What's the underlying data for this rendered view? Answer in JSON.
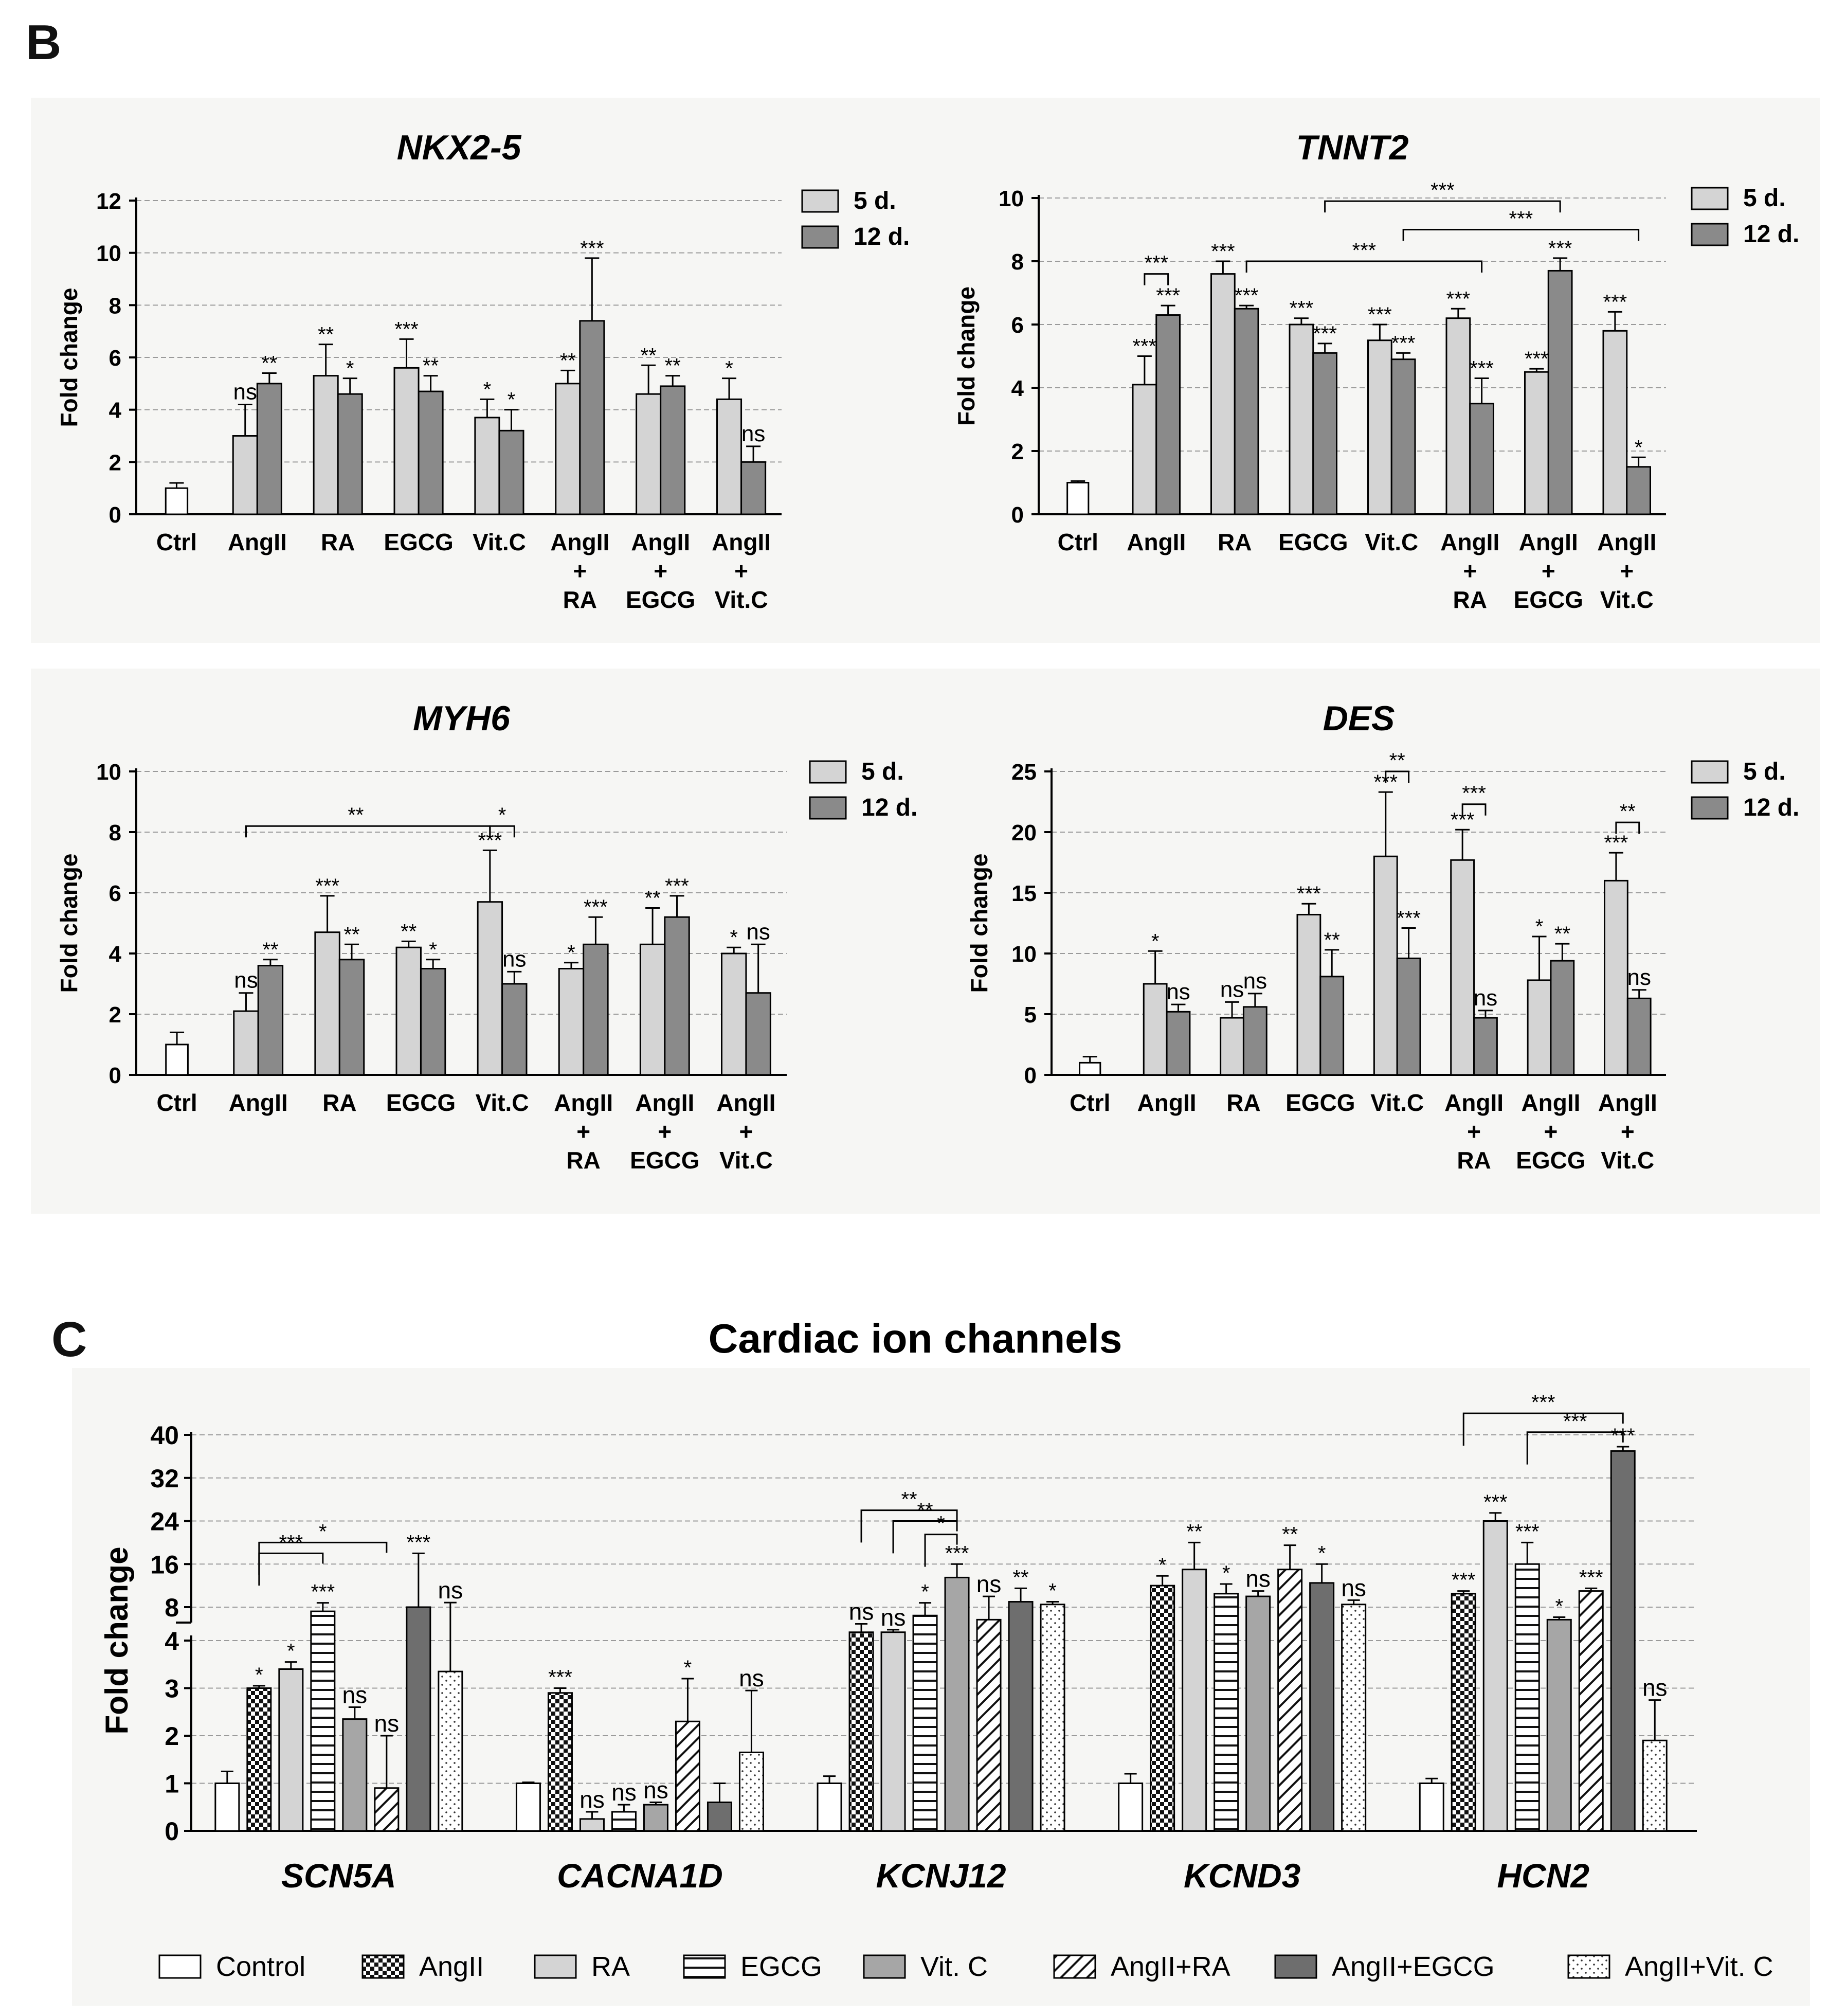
{
  "figure": {
    "panel_b_label": "B",
    "panel_c_label": "C",
    "legend_5d": "5 d.",
    "legend_12d": "12 d.",
    "ylabel": "Fold change",
    "colors": {
      "bar_5d": "#d4d4d4",
      "bar_12d": "#8a8a8a",
      "ctrl": "#ffffff",
      "axis": "#000000",
      "grid": "#9a9a9a"
    }
  },
  "chart_data": [
    {
      "id": "nkx25",
      "type": "bar",
      "title": "NKX2-5",
      "ylabel": "Fold change",
      "ylim": [
        0,
        12
      ],
      "yticks": [
        "0",
        "2",
        "4",
        "6",
        "8",
        "10",
        "12"
      ],
      "categories": [
        "Ctrl",
        "AngII",
        "RA",
        "EGCG",
        "Vit.C",
        "AngII\n+\nRA",
        "AngII\n+\nEGCG",
        "AngII\n+\nVit.C"
      ],
      "ctrl": {
        "value": 1.0,
        "err": 0.2
      },
      "series": [
        {
          "name": "5 d.",
          "values": [
            null,
            3.0,
            5.3,
            5.6,
            3.7,
            5.0,
            4.6,
            4.4
          ],
          "err": [
            null,
            1.2,
            1.2,
            1.1,
            0.7,
            0.5,
            1.1,
            0.8
          ],
          "sig": [
            null,
            "ns",
            "**",
            "***",
            "*",
            "**",
            "**",
            "*"
          ]
        },
        {
          "name": "12 d.",
          "values": [
            null,
            5.0,
            4.6,
            4.7,
            3.2,
            7.4,
            4.9,
            2.0
          ],
          "err": [
            null,
            0.4,
            0.6,
            0.6,
            0.8,
            2.4,
            0.4,
            0.6
          ],
          "sig": [
            null,
            "**",
            "*",
            "**",
            "*",
            "***",
            "**",
            "ns"
          ]
        }
      ],
      "brackets": []
    },
    {
      "id": "tnnt2",
      "type": "bar",
      "title": "TNNT2",
      "ylabel": "Fold change",
      "ylim": [
        0,
        10
      ],
      "yticks": [
        "0",
        "2",
        "4",
        "6",
        "8",
        "10"
      ],
      "categories": [
        "Ctrl",
        "AngII",
        "RA",
        "EGCG",
        "Vit.C",
        "AngII\n+\nRA",
        "AngII\n+\nEGCG",
        "AngII\n+\nVit.C"
      ],
      "ctrl": {
        "value": 1.0,
        "err": 0.05
      },
      "series": [
        {
          "name": "5 d.",
          "values": [
            null,
            4.1,
            7.6,
            6.0,
            5.5,
            6.2,
            4.5,
            5.8
          ],
          "err": [
            null,
            0.9,
            0.4,
            0.2,
            0.5,
            0.3,
            0.1,
            0.6
          ],
          "sig": [
            null,
            "***",
            "***",
            "***",
            "***",
            "***",
            "***",
            "***"
          ]
        },
        {
          "name": "12 d.",
          "values": [
            null,
            6.3,
            6.5,
            5.1,
            4.9,
            3.5,
            7.7,
            1.5
          ],
          "err": [
            null,
            0.3,
            0.1,
            0.3,
            0.2,
            0.8,
            0.4,
            0.3
          ],
          "sig": [
            null,
            "***",
            "***",
            "***",
            "***",
            "***",
            "***",
            "*"
          ]
        }
      ],
      "brackets": [
        {
          "from": [
            1,
            0
          ],
          "to": [
            1,
            1
          ],
          "label": "***",
          "y": 7.6
        },
        {
          "from": [
            3,
            1
          ],
          "to": [
            6,
            1
          ],
          "label": "***",
          "y": 9.9
        },
        {
          "from": [
            4,
            1
          ],
          "to": [
            7,
            1
          ],
          "label": "***",
          "y": 9.0
        },
        {
          "from": [
            2,
            1
          ],
          "to": [
            5,
            1
          ],
          "label": "***",
          "y": 8.0
        }
      ]
    },
    {
      "id": "myh6",
      "type": "bar",
      "title": "MYH6",
      "ylabel": "Fold change",
      "ylim": [
        0,
        10
      ],
      "yticks": [
        "0",
        "2",
        "4",
        "6",
        "8",
        "10"
      ],
      "categories": [
        "Ctrl",
        "AngII",
        "RA",
        "EGCG",
        "Vit.C",
        "AngII\n+\nRA",
        "AngII\n+\nEGCG",
        "AngII\n+\nVit.C"
      ],
      "ctrl": {
        "value": 1.0,
        "err": 0.4
      },
      "series": [
        {
          "name": "5 d.",
          "values": [
            null,
            2.1,
            4.7,
            4.2,
            5.7,
            3.5,
            4.3,
            4.0
          ],
          "err": [
            null,
            0.6,
            1.2,
            0.2,
            1.7,
            0.2,
            1.2,
            0.2
          ],
          "sig": [
            null,
            "ns",
            "***",
            "**",
            "***",
            "*",
            "**",
            "*"
          ]
        },
        {
          "name": "12 d.",
          "values": [
            null,
            3.6,
            3.8,
            3.5,
            3.0,
            4.3,
            5.2,
            2.7
          ],
          "err": [
            null,
            0.2,
            0.5,
            0.3,
            0.4,
            0.9,
            0.7,
            1.6
          ],
          "sig": [
            null,
            "**",
            "**",
            "*",
            "ns",
            "***",
            "***",
            "ns"
          ]
        }
      ],
      "brackets": [
        {
          "from": [
            1,
            0
          ],
          "to": [
            4,
            0
          ],
          "label": "**",
          "y": 8.2,
          "label_at": 0.45
        },
        {
          "from": [
            4,
            0
          ],
          "to": [
            4,
            1
          ],
          "label": "*",
          "y": 8.2
        }
      ]
    },
    {
      "id": "des",
      "type": "bar",
      "title": "DES",
      "ylabel": "Fold change",
      "ylim": [
        0,
        25
      ],
      "yticks": [
        "0",
        "5",
        "10",
        "15",
        "20",
        "25"
      ],
      "categories": [
        "Ctrl",
        "AngII",
        "RA",
        "EGCG",
        "Vit.C",
        "AngII\n+\nRA",
        "AngII\n+\nEGCG",
        "AngII\n+\nVit.C"
      ],
      "ctrl": {
        "value": 1.0,
        "err": 0.5
      },
      "series": [
        {
          "name": "5 d.",
          "values": [
            null,
            7.5,
            4.7,
            13.2,
            18.0,
            17.7,
            7.8,
            16.0
          ],
          "err": [
            null,
            2.7,
            1.3,
            0.9,
            5.3,
            2.5,
            3.6,
            2.3
          ],
          "sig": [
            null,
            "*",
            "ns",
            "***",
            "***",
            "***",
            "*",
            "***"
          ]
        },
        {
          "name": "12 d.",
          "values": [
            null,
            5.2,
            5.6,
            8.1,
            9.6,
            4.7,
            9.4,
            6.3
          ],
          "err": [
            null,
            0.6,
            1.1,
            2.2,
            2.5,
            0.6,
            1.4,
            0.7
          ],
          "sig": [
            null,
            "ns",
            "ns",
            "**",
            "***",
            "ns",
            "**",
            "ns"
          ]
        }
      ],
      "brackets": [
        {
          "from": [
            4,
            0
          ],
          "to": [
            4,
            1
          ],
          "label": "**",
          "y": 25.0
        },
        {
          "from": [
            5,
            0
          ],
          "to": [
            5,
            1
          ],
          "label": "***",
          "y": 22.3
        },
        {
          "from": [
            7,
            0
          ],
          "to": [
            7,
            1
          ],
          "label": "**",
          "y": 20.8
        }
      ]
    },
    {
      "id": "ion",
      "type": "bar",
      "title": "Cardiac ion channels",
      "ylabel": "Fold change",
      "axis_break": {
        "lower": [
          0,
          4
        ],
        "upper": [
          8,
          40
        ]
      },
      "yticks_lower": [
        "0",
        "1",
        "2",
        "3",
        "4"
      ],
      "yticks_upper": [
        "8",
        "16",
        "24",
        "32",
        "40"
      ],
      "categories": [
        "SCN5A",
        "CACNA1D",
        "KCNJ12",
        "KCND3",
        "HCN2"
      ],
      "series": [
        {
          "name": "Control",
          "pattern": "open",
          "values": [
            1.0,
            1.0,
            1.0,
            1.0,
            1.0
          ],
          "err": [
            0.25,
            0.02,
            0.15,
            0.2,
            0.1
          ],
          "sig": [
            "",
            "",
            "",
            "",
            ""
          ]
        },
        {
          "name": "AngII",
          "pattern": "checker",
          "values": [
            3.0,
            2.9,
            5.0,
            12.0,
            10.5
          ],
          "err": [
            0.05,
            0.1,
            1.0,
            1.8,
            0.5
          ],
          "sig": [
            "*",
            "***",
            "ns",
            "*",
            "***"
          ]
        },
        {
          "name": "RA",
          "pattern": "light",
          "values": [
            3.4,
            0.25,
            5.0,
            15.0,
            24.0
          ],
          "err": [
            0.15,
            0.15,
            0.3,
            5.0,
            1.5
          ],
          "sig": [
            "*",
            "ns",
            "ns",
            "**",
            "***"
          ]
        },
        {
          "name": "EGCG",
          "pattern": "hlines",
          "values": [
            7.5,
            0.4,
            7.0,
            10.5,
            16.0
          ],
          "err": [
            1.3,
            0.15,
            1.8,
            1.8,
            4.0
          ],
          "sig": [
            "***",
            "ns",
            "*",
            "*",
            "***"
          ]
        },
        {
          "name": "Vit. C",
          "pattern": "gray",
          "values": [
            2.35,
            0.55,
            13.5,
            10.0,
            6.5
          ],
          "err": [
            0.25,
            0.05,
            2.5,
            1.0,
            0.3
          ],
          "sig": [
            "ns",
            "ns",
            "***",
            "ns",
            "*"
          ]
        },
        {
          "name": "AngII+RA",
          "pattern": "diag",
          "values": [
            0.9,
            2.3,
            6.5,
            15.0,
            11.0
          ],
          "err": [
            1.1,
            0.9,
            3.5,
            4.5,
            0.5
          ],
          "sig": [
            "ns",
            "*",
            "ns",
            "**",
            "***"
          ]
        },
        {
          "name": "AngII+EGCG",
          "pattern": "dark",
          "values": [
            8.0,
            0.6,
            9.0,
            12.5,
            37.0
          ],
          "err": [
            10.0,
            0.4,
            2.5,
            3.5,
            0.8
          ],
          "sig": [
            "***",
            "",
            "**",
            "*",
            "***"
          ]
        },
        {
          "name": "AngII+Vit. C",
          "pattern": "dots",
          "values": [
            3.35,
            1.65,
            8.5,
            8.5,
            1.9
          ],
          "err": [
            5.5,
            1.3,
            0.5,
            0.8,
            0.85
          ],
          "sig": [
            "ns",
            "ns",
            "*",
            "ns",
            "ns"
          ]
        }
      ],
      "brackets": [
        {
          "group": 0,
          "from": 1,
          "to": 3,
          "label": "***",
          "y": 18.0
        },
        {
          "group": 0,
          "from": 1,
          "to": 5,
          "label": "*",
          "y": 20.0
        },
        {
          "group": 2,
          "from": 1,
          "to": 4,
          "label": "**",
          "y": 26.0
        },
        {
          "group": 2,
          "from": 2,
          "to": 4,
          "label": "**",
          "y": 24.0
        },
        {
          "group": 2,
          "from": 3,
          "to": 4,
          "label": "*",
          "y": 21.5
        },
        {
          "group": 4,
          "from": 1,
          "to": 6,
          "label": "***",
          "y": 44.0
        },
        {
          "group": 4,
          "from": 3,
          "to": 6,
          "label": "***",
          "y": 40.5
        }
      ]
    }
  ]
}
